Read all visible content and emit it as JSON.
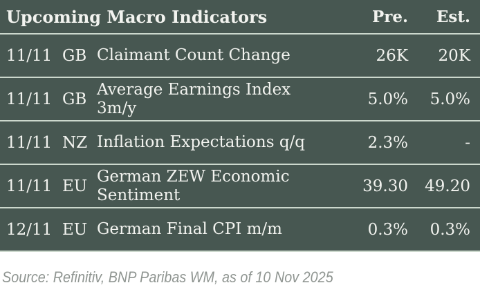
{
  "table": {
    "title": "Upcoming Macro Indicators",
    "columns": {
      "pre": "Pre.",
      "est": "Est."
    },
    "rows": [
      {
        "date": "11/11",
        "country": "GB",
        "indicator": "Claimant Count Change",
        "pre": "26K",
        "est": "20K"
      },
      {
        "date": "11/11",
        "country": "GB",
        "indicator": "Average Earnings Index\n3m/y",
        "pre": "5.0%",
        "est": "5.0%"
      },
      {
        "date": "11/11",
        "country": "NZ",
        "indicator": "Inflation Expectations q/q",
        "pre": "2.3%",
        "est": "-"
      },
      {
        "date": "11/11",
        "country": "EU",
        "indicator": "German ZEW Economic\nSentiment",
        "pre": "39.30",
        "est": "49.20"
      },
      {
        "date": "12/11",
        "country": "EU",
        "indicator": "German Final CPI m/m",
        "pre": "0.3%",
        "est": "0.3%"
      }
    ]
  },
  "footer": {
    "source": "Source: Refinitiv, BNP Paribas WM, as of 10 Nov 2025"
  },
  "colors": {
    "table_bg": "#475751",
    "divider": "#ccd8cd",
    "table_text": "#f2f3ef",
    "source_text": "#8f9591",
    "page_bg": "#ffffff"
  }
}
